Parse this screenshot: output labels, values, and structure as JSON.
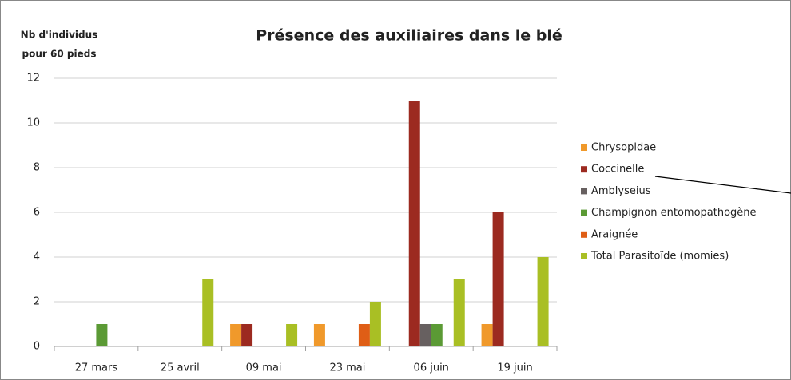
{
  "chart_data": {
    "type": "bar",
    "title": "Présence des auxiliaires dans le blé",
    "ylabel": [
      "Nb d'individus",
      "pour 60 pieds"
    ],
    "categories": [
      "27 mars",
      "25 avril",
      "09 mai",
      "23 mai",
      "06 juin",
      "19 juin"
    ],
    "series": [
      {
        "name": "Chrysopidae",
        "color": "#f0992b",
        "values": [
          0,
          0,
          1,
          1,
          0,
          1
        ]
      },
      {
        "name": "Coccinelle",
        "color": "#9c2a20",
        "values": [
          0,
          0,
          1,
          0,
          11,
          6
        ]
      },
      {
        "name": "Amblyseius",
        "color": "#676060",
        "values": [
          0,
          0,
          0,
          0,
          1,
          0
        ]
      },
      {
        "name": "Champignon entomopathogène",
        "color": "#5b9a35",
        "values": [
          1,
          0,
          0,
          0,
          1,
          0
        ]
      },
      {
        "name": "Araignée",
        "color": "#df5e16",
        "values": [
          0,
          0,
          0,
          1,
          0,
          0
        ]
      },
      {
        "name": "Total Parasitoïde (momies)",
        "color": "#a9bf24",
        "values": [
          0,
          3,
          1,
          2,
          3,
          4
        ]
      }
    ],
    "ylim": [
      0,
      12
    ],
    "yticks": [
      0,
      2,
      4,
      6,
      8,
      10,
      12
    ],
    "grid": true,
    "legend": "right"
  }
}
